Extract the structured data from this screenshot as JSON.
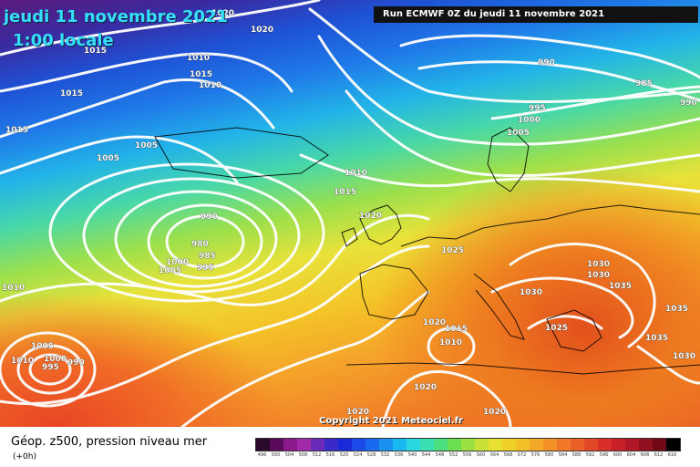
{
  "header": {
    "date": "jeudi 11 novembre 2021",
    "local_time": "1:00 locale",
    "run": "Run ECMWF 0Z du jeudi 11 novembre 2021"
  },
  "copyright": "Copyright 2021 Meteociel.fr",
  "footer": {
    "field": "Géop. z500, pression niveau mer",
    "lead": "(+0h)"
  },
  "isobar_labels": [
    "1020",
    "1020",
    "1015",
    "1010",
    "1015",
    "1010",
    "1015",
    "1015",
    "1005",
    "1005",
    "990",
    "985",
    "990",
    "995",
    "1000",
    "1005",
    "1010",
    "1015",
    "1020",
    "990",
    "980",
    "985",
    "995",
    "1000",
    "1005",
    "1025",
    "1030",
    "1030",
    "1035",
    "1030",
    "1035",
    "1025",
    "1035",
    "1030",
    "1020",
    "1015",
    "1010",
    "1020",
    "1020",
    "1020",
    "1010",
    "1005",
    "1000",
    "995",
    "990",
    "1010"
  ],
  "scale": {
    "ticks": [
      "496",
      "500",
      "504",
      "508",
      "512",
      "516",
      "520",
      "524",
      "528",
      "532",
      "536",
      "540",
      "544",
      "548",
      "552",
      "556",
      "560",
      "564",
      "568",
      "572",
      "576",
      "580",
      "584",
      "588",
      "592",
      "596",
      "600",
      "604",
      "608",
      "612",
      "616"
    ],
    "colors": [
      "#2a0a2a",
      "#5a0a5a",
      "#8a1a8a",
      "#a02aa8",
      "#6a2ab8",
      "#3a2ac8",
      "#1a2ad8",
      "#1a4ae8",
      "#1a6af0",
      "#1a90f0",
      "#1ab8f0",
      "#2ad8e0",
      "#3ae0b0",
      "#4ae080",
      "#6ae050",
      "#9ae040",
      "#c8e038",
      "#e8e030",
      "#f0d028",
      "#f4c028",
      "#f4a828",
      "#f49028",
      "#f07828",
      "#e86028",
      "#e04828",
      "#d83028",
      "#c82028",
      "#b01828",
      "#901020",
      "#700818",
      "#000000"
    ]
  }
}
